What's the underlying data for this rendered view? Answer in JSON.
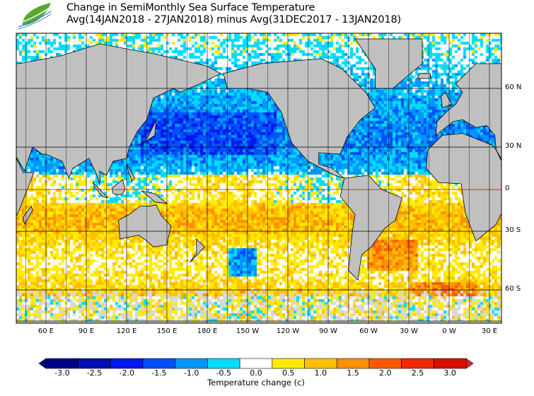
{
  "header": {
    "title": "Change in SemiMonthly Sea Surface Temperature",
    "subtitle": "Avg(14JAN2018 - 27JAN2018) minus Avg(31DEC2017 - 13JAN2018)",
    "logo_icon": "leaf-wave-logo"
  },
  "map": {
    "projection": "mercator-like global, centered 150W",
    "land_color": "#c0c0c0",
    "coastline_color": "#000000",
    "grid": true,
    "lon_labels": [
      "60 E",
      "90 E",
      "120 E",
      "150 E",
      "180 E",
      "150 W",
      "120 W",
      "90 W",
      "60 W",
      "30 W",
      "0 W",
      "30 E"
    ],
    "lat_labels": [
      "60 N",
      "30 N",
      "0",
      "30 S",
      "60 S"
    ]
  },
  "colorbar": {
    "title": "Temperature change  (c)",
    "ticks": [
      "-3.0",
      "-2.5",
      "-2.0",
      "-1.5",
      "-1.0",
      "-0.5",
      "0.0",
      "0.5",
      "1.0",
      "1.5",
      "2.0",
      "2.5",
      "3.0"
    ],
    "colors": [
      "#000086",
      "#0010b0",
      "#0018f0",
      "#0050ff",
      "#0096ff",
      "#00dcff",
      "#ffffff",
      "#ffeb00",
      "#ffc000",
      "#ff9000",
      "#ff5a00",
      "#ee2a00",
      "#d51000"
    ]
  }
}
